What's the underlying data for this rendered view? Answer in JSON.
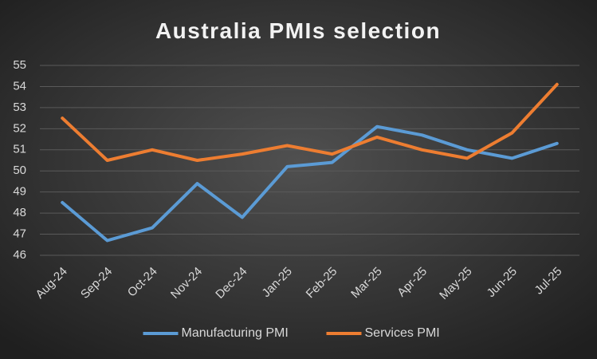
{
  "chart_data": {
    "type": "line",
    "title": "Australia PMIs selection",
    "categories": [
      "Aug-24",
      "Sep-24",
      "Oct-24",
      "Nov-24",
      "Dec-24",
      "Jan-25",
      "Feb-25",
      "Mar-25",
      "Apr-25",
      "May-25",
      "Jun-25",
      "Jul-25"
    ],
    "series": [
      {
        "name": "Manufacturing PMI",
        "color": "#5b9bd5",
        "values": [
          48.5,
          46.7,
          47.3,
          49.4,
          47.8,
          50.2,
          50.4,
          52.1,
          51.7,
          51.0,
          50.6,
          51.3
        ]
      },
      {
        "name": "Services PMI",
        "color": "#ed7d31",
        "values": [
          52.5,
          50.5,
          51.0,
          50.5,
          50.8,
          51.2,
          50.8,
          51.6,
          51.0,
          50.6,
          51.8,
          54.1
        ]
      }
    ],
    "ylim": [
      46,
      55
    ],
    "yticks": [
      46,
      47,
      48,
      49,
      50,
      51,
      52,
      53,
      54,
      55
    ],
    "grid": true,
    "legend": "bottom"
  }
}
